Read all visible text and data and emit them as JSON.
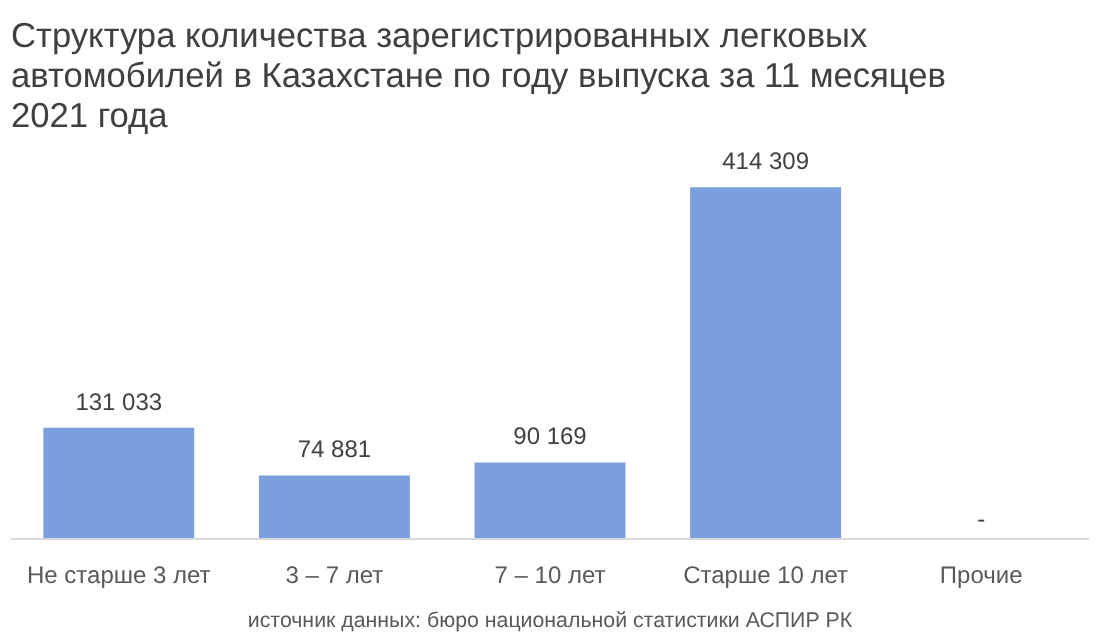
{
  "chart_data": {
    "type": "bar",
    "title": "Структура количества зарегистрированных легковых автомобилей в Казахстане по году выпуска за 11 месяцев 2021 года",
    "categories": [
      "Не старше 3 лет",
      "3 – 7 лет",
      "7 – 10 лет",
      "Старше 10 лет",
      "Прочие"
    ],
    "values": [
      131033,
      74881,
      90169,
      414309,
      null
    ],
    "value_labels": [
      "131 033",
      "74 881",
      "90 169",
      "414 309",
      "-"
    ],
    "color": "#7a9fdc",
    "annotations": [
      "источник данных: бюро национальной статистики АСПИР РК"
    ]
  }
}
